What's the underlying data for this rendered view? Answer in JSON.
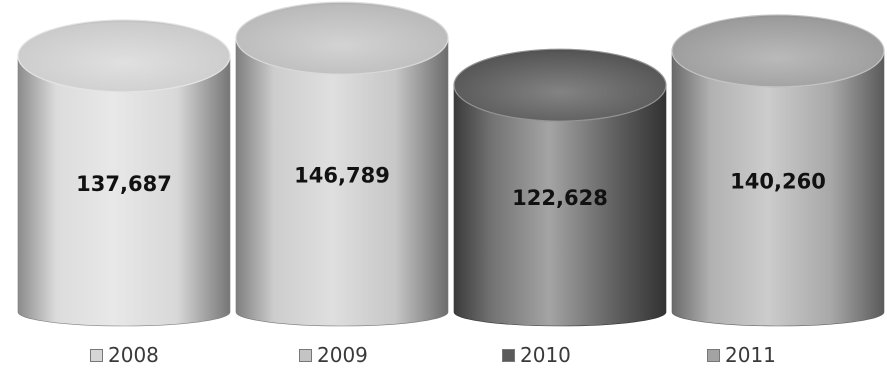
{
  "chart_data": {
    "type": "bar",
    "style": "3d-cylinder",
    "categories": [
      "2008",
      "2009",
      "2010",
      "2011"
    ],
    "values": [
      137687,
      146789,
      122628,
      140260
    ],
    "data_labels": [
      "137,687",
      "146,789",
      "122,628",
      "140,260"
    ],
    "colors": [
      "#d6d6d6",
      "#c4c4c4",
      "#5a5a5a",
      "#a3a3a3"
    ],
    "legend_position": "bottom",
    "grid": false,
    "ylim": [
      0,
      160000
    ]
  }
}
